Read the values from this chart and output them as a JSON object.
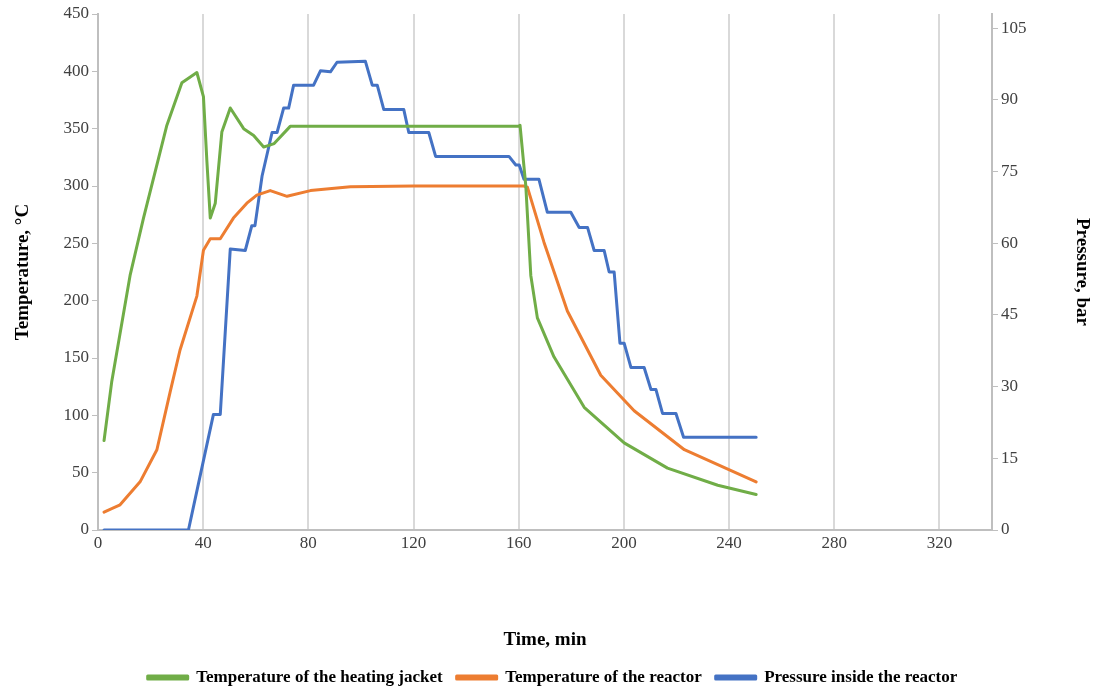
{
  "chart_data": {
    "type": "line",
    "xlabel": "Time, min",
    "ylabel": "Temperature, °C",
    "y2label": "Pressure, bar",
    "xlim": [
      0,
      340
    ],
    "xticks": [
      0,
      40,
      80,
      120,
      160,
      200,
      240,
      280,
      320
    ],
    "ylim": [
      0,
      450
    ],
    "yticks": [
      0,
      50,
      100,
      150,
      200,
      250,
      300,
      350,
      400,
      450
    ],
    "y2lim": [
      0,
      108
    ],
    "y2ticks": [
      0,
      15,
      30,
      45,
      60,
      75,
      90,
      105
    ],
    "grid": "x",
    "legend": "bottom",
    "marker": "none",
    "line_style": "solid",
    "series": [
      {
        "name": "Temperature of the heating jacket",
        "color": "#70ad47",
        "x": [
          2.3,
          5.2,
          12.2,
          17.3,
          26.2,
          31.9,
          37.6,
          40.1,
          41.4,
          42.7,
          44.6,
          47.1,
          50.3,
          55.4,
          59.2,
          63,
          64.4,
          67,
          73.1,
          90,
          120,
          140,
          160,
          160.5,
          162.7,
          164.6,
          167.1,
          173.4,
          184.9,
          200.1,
          216.6,
          235.7,
          250.3
        ],
        "values": [
          78,
          129,
          222,
          272,
          353,
          390,
          399,
          378,
          322,
          272,
          285,
          347,
          368,
          350,
          344,
          334,
          335,
          337,
          352,
          352,
          352,
          352,
          352,
          353,
          300,
          222,
          185,
          151,
          107,
          76,
          54,
          39,
          31
        ]
      },
      {
        "name": "Temperature of the reactor",
        "color": "#ed7d31",
        "x": [
          2.3,
          8.4,
          16,
          22.4,
          27.4,
          31.2,
          37.6,
          40.1,
          42.7,
          46.5,
          51.5,
          56.6,
          60.4,
          65.5,
          71.9,
          80.8,
          96,
          120,
          140,
          161.9,
          163.3,
          169.6,
          178.5,
          191.2,
          203.9,
          223,
          250.3
        ],
        "values": [
          15.6,
          22,
          42,
          70,
          120,
          157,
          204,
          244,
          254,
          254,
          272,
          285,
          292,
          296,
          291,
          296,
          299.4,
          300,
          300,
          300,
          299,
          251,
          191,
          135,
          104,
          70,
          42
        ]
      },
      {
        "name": "Pressure inside the reactor",
        "color": "#4472c4",
        "axis": "y2",
        "x": [
          2.3,
          34.4,
          43.9,
          46.5,
          50.3,
          56,
          58.5,
          59.7,
          62.4,
          66.2,
          68.1,
          70.6,
          72.5,
          74.4,
          82,
          84.6,
          88.4,
          90.9,
          101.7,
          104.3,
          106.2,
          108.7,
          116.3,
          118.2,
          125.8,
          128.4,
          156.3,
          158.9,
          160.2,
          162,
          167.7,
          170.9,
          179.8,
          183,
          186.2,
          188.7,
          192.5,
          194.4,
          196.3,
          198.5,
          200.1,
          202.7,
          207.7,
          210.3,
          212.2,
          214.7,
          219.8,
          222.7,
          250.3
        ],
        "values": [
          0,
          0,
          24.2,
          24.2,
          58.8,
          58.5,
          63.7,
          63.7,
          74.1,
          83.2,
          83.2,
          88.3,
          88.3,
          93.1,
          93.1,
          96.1,
          95.9,
          97.9,
          98.1,
          93.1,
          93.1,
          88,
          88,
          83.2,
          83.2,
          78.2,
          78.2,
          76.4,
          76.4,
          73.4,
          73.4,
          66.5,
          66.5,
          63.3,
          63.3,
          58.5,
          58.5,
          54,
          54,
          39.1,
          39.1,
          34,
          34,
          29.4,
          29.4,
          24.4,
          24.4,
          19.4,
          19.4
        ]
      }
    ]
  }
}
